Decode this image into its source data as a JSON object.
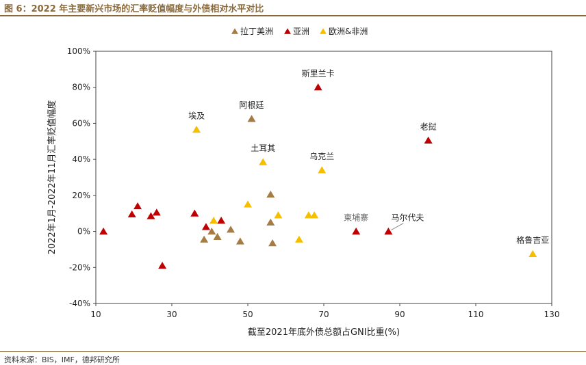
{
  "figure_title": "图 6：2022 年主要新兴市场的汇率贬值幅度与外债相对水平对比",
  "source": "资料来源：BIS，IMF，德邦研究所",
  "colors": {
    "latam": "#A67C45",
    "asia": "#C00000",
    "euafrica": "#F5BF00",
    "accent": "#8B6A3A"
  },
  "chart_data": {
    "type": "scatter",
    "xlabel": "截至2021年底外债总额占GNI比重(%)",
    "ylabel": "2022年1月-2022年11月汇率贬值幅度",
    "xlim": [
      10,
      130
    ],
    "ylim": [
      -40,
      100
    ],
    "x_ticks": [
      "10",
      "30",
      "50",
      "70",
      "90",
      "110",
      "130"
    ],
    "y_ticks": [
      "-40%",
      "-20%",
      "0%",
      "20%",
      "40%",
      "60%",
      "80%",
      "100%"
    ],
    "grid": false,
    "legend_position": "top-center",
    "series": [
      {
        "name": "拉丁美洲",
        "key": "latam",
        "points": [
          [
            38.5,
            -4.5
          ],
          [
            40.5,
            0
          ],
          [
            42,
            -3
          ],
          [
            45.5,
            1
          ],
          [
            48,
            -5.5
          ],
          [
            51,
            62.5
          ],
          [
            56,
            20.5
          ],
          [
            56,
            5
          ],
          [
            56.5,
            -6.5
          ]
        ]
      },
      {
        "name": "亚洲",
        "key": "asia",
        "points": [
          [
            12,
            0
          ],
          [
            19.5,
            9.5
          ],
          [
            21,
            14
          ],
          [
            24.5,
            8.5
          ],
          [
            26,
            10.5
          ],
          [
            27.5,
            -19
          ],
          [
            36,
            10
          ],
          [
            39,
            2.5
          ],
          [
            43,
            6
          ],
          [
            68.5,
            80
          ],
          [
            78.5,
            0
          ],
          [
            87,
            0
          ],
          [
            97.5,
            50.5
          ]
        ]
      },
      {
        "name": "欧洲&非洲",
        "key": "euafrica",
        "points": [
          [
            36.5,
            56.5
          ],
          [
            41,
            6
          ],
          [
            50,
            15
          ],
          [
            54,
            38.5
          ],
          [
            58,
            9
          ],
          [
            63.5,
            -4.5
          ],
          [
            66,
            9
          ],
          [
            67.5,
            9
          ],
          [
            69.5,
            34
          ],
          [
            125,
            -12.5
          ]
        ]
      }
    ],
    "annotations": [
      {
        "text": "斯里兰卡",
        "x": 68.5,
        "y": 80,
        "style": "normal"
      },
      {
        "text": "老挝",
        "x": 97.5,
        "y": 50.5,
        "style": "normal"
      },
      {
        "text": "阿根廷",
        "x": 51,
        "y": 62.5,
        "style": "normal"
      },
      {
        "text": "埃及",
        "x": 36.5,
        "y": 56.5,
        "style": "normal"
      },
      {
        "text": "土耳其",
        "x": 54,
        "y": 38.5,
        "style": "normal"
      },
      {
        "text": "乌克兰",
        "x": 69.5,
        "y": 34,
        "style": "normal"
      },
      {
        "text": "柬埔寨",
        "x": 78.5,
        "y": 0,
        "style": "gray"
      },
      {
        "text": "马尔代夫",
        "x": 87,
        "y": 0,
        "style": "leader"
      },
      {
        "text": "格鲁吉亚",
        "x": 125,
        "y": -12.5,
        "style": "normal"
      }
    ]
  }
}
